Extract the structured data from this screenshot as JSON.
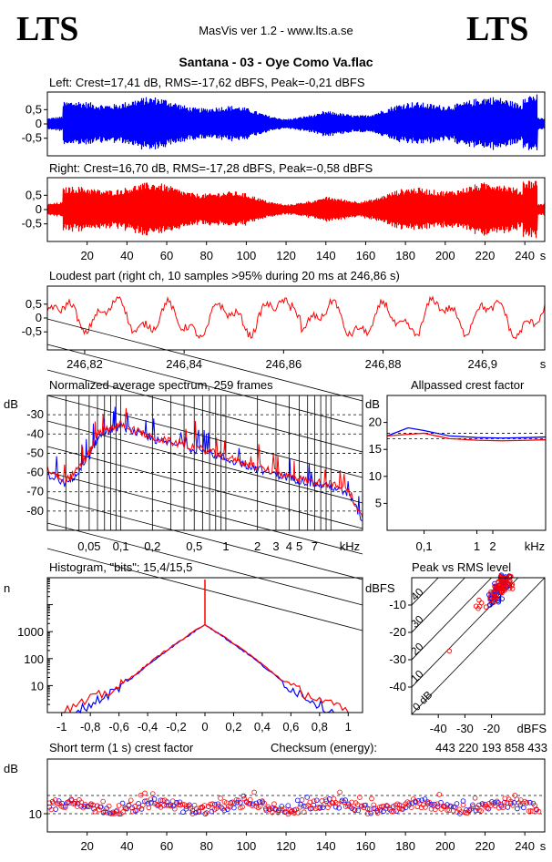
{
  "header": {
    "logo_left": "LTS",
    "logo_right": "LTS",
    "app": "MasVis ver 1.2 - www.lts.a.se",
    "track": "Santana - 03 - Oye Como Va.flac"
  },
  "colors": {
    "left": "#0000ff",
    "right": "#ff0000",
    "grid": "#000000"
  },
  "chart_data": [
    {
      "type": "line",
      "id": "waveform-left",
      "title": "Left: Crest=17,41 dB, RMS=-17,62 dBFS, Peak=-0,21 dBFS",
      "series": [
        {
          "name": "Left",
          "color": "#0000ff"
        }
      ],
      "yticks": [
        "0,5",
        "0",
        "-0,5"
      ],
      "ylim": [
        -1,
        1
      ],
      "xlim": [
        0,
        250
      ],
      "envelope_peak": 0.98
    },
    {
      "type": "line",
      "id": "waveform-right",
      "title": "Right: Crest=16,70 dB, RMS=-17,28 dBFS, Peak=-0,58 dBFS",
      "series": [
        {
          "name": "Right",
          "color": "#ff0000"
        }
      ],
      "yticks": [
        "0,5",
        "0",
        "-0,5"
      ],
      "xticks": [
        "20",
        "40",
        "60",
        "80",
        "100",
        "120",
        "140",
        "160",
        "180",
        "200",
        "220",
        "240"
      ],
      "xunit": "s",
      "ylim": [
        -1,
        1
      ],
      "xlim": [
        0,
        250
      ]
    },
    {
      "type": "line",
      "id": "loudest-part",
      "title": "Loudest part (right ch, 10 samples >95% during 20 ms at 246,86 s)",
      "series": [
        {
          "name": "Right",
          "color": "#ff0000"
        }
      ],
      "yticks": [
        "0,5",
        "0",
        "-0,5"
      ],
      "xticks": [
        "246,82",
        "246,84",
        "246,86",
        "246,88",
        "246,9"
      ],
      "xunit": "s",
      "xlim": [
        246.8125,
        246.9125
      ],
      "ylim": [
        -1,
        1
      ]
    },
    {
      "type": "line",
      "id": "spectrum",
      "title": "Normalized average spectrum, 259 frames",
      "ylabel": "dB",
      "yticks": [
        "-30",
        "-40",
        "-50",
        "-60",
        "-70",
        "-80"
      ],
      "xticks": [
        "0,05",
        "0,1",
        "0,2",
        "0,5",
        "1",
        "2",
        "3",
        "4",
        "5",
        "7"
      ],
      "xunit": "kHz",
      "xscale": "log",
      "xlim": [
        0.02,
        20
      ],
      "ylim": [
        -90,
        -20
      ],
      "series": [
        {
          "name": "Left",
          "color": "#0000ff",
          "x": [
            0.02,
            0.03,
            0.04,
            0.05,
            0.06,
            0.08,
            0.1,
            0.15,
            0.2,
            0.3,
            0.5,
            0.7,
            1,
            1.5,
            2,
            3,
            4,
            5,
            7,
            10,
            15,
            20
          ],
          "y": [
            -62,
            -66,
            -60,
            -52,
            -42,
            -38,
            -36,
            -40,
            -43,
            -45,
            -48,
            -50,
            -53,
            -56,
            -58,
            -61,
            -63,
            -64,
            -66,
            -67,
            -72,
            -85
          ]
        },
        {
          "name": "Right",
          "color": "#ff0000",
          "x": [
            0.02,
            0.03,
            0.04,
            0.05,
            0.06,
            0.08,
            0.1,
            0.15,
            0.2,
            0.3,
            0.5,
            0.7,
            1,
            1.5,
            2,
            3,
            4,
            5,
            7,
            10,
            15,
            20
          ],
          "y": [
            -58,
            -64,
            -58,
            -50,
            -40,
            -37,
            -35,
            -39,
            -42,
            -44,
            -47,
            -49,
            -52,
            -55,
            -57,
            -60,
            -62,
            -63,
            -65,
            -66,
            -70,
            -84
          ]
        }
      ]
    },
    {
      "type": "line",
      "id": "allpassed-crest",
      "title": "Allpassed crest factor",
      "ylabel": "dB",
      "yticks": [
        "20",
        "15",
        "10",
        "5"
      ],
      "xticks": [
        "0,1",
        "1",
        "2"
      ],
      "xunit": "kHz",
      "xscale": "log",
      "xlim": [
        0.02,
        20
      ],
      "ylim": [
        0,
        25
      ],
      "series": [
        {
          "name": "Left",
          "color": "#0000ff",
          "x": [
            0.02,
            0.05,
            0.1,
            0.3,
            1,
            3,
            10,
            20
          ],
          "y": [
            17.5,
            19,
            18.5,
            17.5,
            17.2,
            17.1,
            17.2,
            17.3
          ]
        },
        {
          "name": "Right",
          "color": "#ff0000",
          "x": [
            0.02,
            0.05,
            0.1,
            0.3,
            1,
            3,
            10,
            20
          ],
          "y": [
            17.5,
            17.8,
            18,
            17,
            16.7,
            16.6,
            16.7,
            16.8
          ]
        }
      ]
    },
    {
      "type": "line",
      "id": "histogram",
      "title": "Histogram, \"bits\": 15,4/15,5",
      "ylabel": "n",
      "yscale": "log",
      "yticks": [
        "1000",
        "100",
        "10"
      ],
      "xticks": [
        "-1",
        "-0,8",
        "-0,6",
        "-0,4",
        "-0,2",
        "0",
        "0,2",
        "0,4",
        "0,6",
        "0,8",
        "1"
      ],
      "xlim": [
        -1.1,
        1.1
      ],
      "ylim": [
        1,
        100000
      ],
      "series": [
        {
          "name": "Left",
          "color": "#0000ff",
          "x": [
            -0.9,
            -0.6,
            -0.3,
            0,
            0.3,
            0.6,
            0.9
          ],
          "y": [
            1,
            8,
            150,
            1900,
            150,
            8,
            1
          ]
        },
        {
          "name": "Right",
          "color": "#ff0000",
          "x": [
            -1,
            -0.6,
            -0.3,
            0,
            0.3,
            0.6,
            1
          ],
          "y": [
            1,
            9,
            160,
            1900,
            160,
            9,
            1
          ]
        }
      ]
    },
    {
      "type": "scatter",
      "id": "peak-vs-rms",
      "title": "Peak vs RMS level",
      "ylabel": "dBFS",
      "xlabel": "dBFS",
      "yticks": [
        "-10",
        "-20",
        "-30",
        "-40"
      ],
      "xticks": [
        "-40",
        "-30",
        "-20"
      ],
      "xlim": [
        -50,
        0
      ],
      "ylim": [
        -50,
        0
      ],
      "diagonal_labels": [
        "40",
        "30",
        "20",
        "10",
        "0 dB"
      ],
      "series": [
        {
          "name": "Left",
          "color": "#0000ff",
          "x": [
            -20,
            -18,
            -17,
            -16,
            -19,
            -15,
            -17,
            -14,
            -18,
            -16
          ],
          "y": [
            -8,
            -5,
            -3,
            -2,
            -7,
            -1,
            -4,
            -2,
            -6,
            -3
          ]
        },
        {
          "name": "Right",
          "color": "#ff0000",
          "x": [
            -19,
            -17,
            -16,
            -15,
            -18,
            -14,
            -16,
            -13,
            -17,
            -15,
            -36,
            -24
          ],
          "y": [
            -7,
            -4,
            -2,
            -1,
            -6,
            -1,
            -3,
            -2,
            -5,
            -2,
            -25,
            -10
          ]
        }
      ]
    },
    {
      "type": "scatter",
      "id": "short-term-crest",
      "title": "Short term (1 s) crest factor",
      "ylabel": "dB",
      "yticks": [
        "10"
      ],
      "xticks": [
        "20",
        "40",
        "60",
        "80",
        "100",
        "120",
        "140",
        "160",
        "180",
        "200",
        "220",
        "240"
      ],
      "xunit": "s",
      "xlim": [
        0,
        250
      ],
      "ylim": [
        5,
        25
      ],
      "series": [
        {
          "name": "Left",
          "color": "#0000ff"
        },
        {
          "name": "Right",
          "color": "#ff0000"
        }
      ]
    }
  ],
  "checksum": {
    "label": "Checksum (energy):",
    "value": "443 220 193 858 433"
  }
}
